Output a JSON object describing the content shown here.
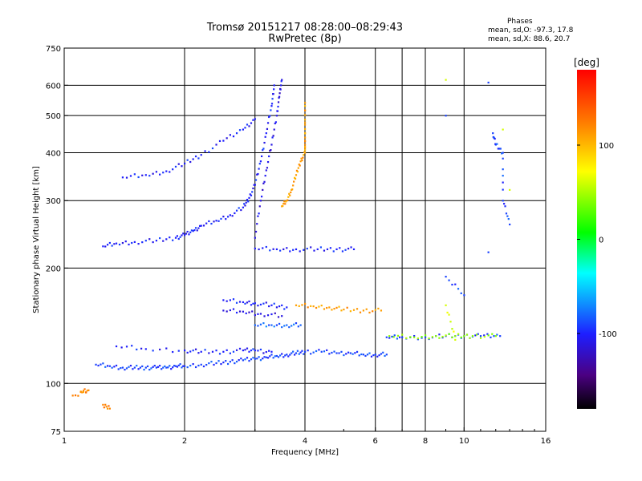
{
  "header": {
    "title_line1": "Tromsø 20151217 08:28:00–08:29:43",
    "title_line2": "RwPretec (8p)",
    "phases_heading": "Phases",
    "phases_o": "mean, sd,O: -97.3, 17.8",
    "phases_x": "mean, sd,X:  88.6, 20.7"
  },
  "chart_data": {
    "type": "scatter",
    "title": "Tromsø 20151217 08:28:00–08:29:43",
    "subtitle": "RwPretec (8p)",
    "xlabel": "Frequency [MHz]",
    "ylabel": "Stationary phase Virtual Height [km]",
    "xscale": "log",
    "yscale": "log",
    "xlim": [
      1,
      16
    ],
    "ylim": [
      75,
      750
    ],
    "xticks": [
      1,
      2,
      4,
      6,
      8,
      10,
      16
    ],
    "xtick_labels": [
      "1",
      "2",
      "4",
      "6",
      "8",
      "10",
      "16"
    ],
    "yticks": [
      75,
      100,
      200,
      300,
      400,
      500,
      600,
      750
    ],
    "ytick_labels": [
      "75",
      "100",
      "200",
      "300",
      "400",
      "500",
      "600",
      "750"
    ],
    "x_gridlines": [
      2,
      3,
      4,
      6,
      7,
      8,
      10
    ],
    "grid": true,
    "colorbar": {
      "label": "[deg]",
      "range": [
        -180,
        180
      ],
      "ticks": [
        100,
        0,
        -100
      ],
      "tick_labels": [
        "100",
        "0",
        "-100"
      ]
    },
    "series": [
      {
        "points": [
          [
            1.2,
            112
          ],
          [
            1.3,
            111
          ],
          [
            1.4,
            110
          ],
          [
            1.5,
            110
          ],
          [
            1.6,
            110
          ],
          [
            1.7,
            110
          ],
          [
            1.8,
            110
          ],
          [
            1.9,
            111
          ],
          [
            2.0,
            111
          ],
          [
            2.2,
            112
          ],
          [
            2.4,
            113
          ],
          [
            2.6,
            114
          ],
          [
            2.8,
            115
          ],
          [
            3.0,
            116
          ],
          [
            3.2,
            117
          ],
          [
            3.4,
            118
          ],
          [
            3.6,
            119
          ],
          [
            3.8,
            120
          ],
          [
            4.0,
            121
          ],
          [
            4.4,
            121
          ],
          [
            4.8,
            120
          ],
          [
            5.2,
            120
          ],
          [
            5.6,
            119
          ],
          [
            6.0,
            119
          ],
          [
            6.4,
            119
          ]
        ],
        "phase": -90
      },
      {
        "points": [
          [
            1.35,
            125
          ],
          [
            1.6,
            123
          ],
          [
            2.0,
            122
          ],
          [
            2.2,
            121
          ],
          [
            2.5,
            121
          ],
          [
            2.8,
            122
          ],
          [
            3.0,
            122
          ],
          [
            3.3,
            121
          ]
        ],
        "phase": -100
      },
      {
        "points": [
          [
            1.25,
            228
          ],
          [
            1.35,
            232
          ],
          [
            1.5,
            234
          ],
          [
            1.7,
            236
          ],
          [
            1.9,
            240
          ],
          [
            2.0,
            244
          ],
          [
            2.1,
            250
          ],
          [
            2.2,
            258
          ],
          [
            2.4,
            266
          ],
          [
            2.6,
            275
          ],
          [
            2.8,
            288
          ],
          [
            2.9,
            305
          ],
          [
            3.0,
            330
          ],
          [
            3.1,
            380
          ],
          [
            3.2,
            450
          ],
          [
            3.3,
            530
          ],
          [
            3.35,
            600
          ]
        ],
        "phase": -100
      },
      {
        "points": [
          [
            3.0,
            240
          ],
          [
            3.1,
            300
          ],
          [
            3.2,
            360
          ],
          [
            3.3,
            420
          ],
          [
            3.4,
            500
          ],
          [
            3.45,
            560
          ],
          [
            3.5,
            620
          ]
        ],
        "phase": -110
      },
      {
        "points": [
          [
            1.4,
            345
          ],
          [
            1.6,
            350
          ],
          [
            1.8,
            358
          ],
          [
            2.0,
            375
          ],
          [
            2.2,
            395
          ],
          [
            2.5,
            430
          ],
          [
            2.8,
            460
          ],
          [
            3.0,
            490
          ]
        ],
        "phase": -100
      },
      {
        "points": [
          [
            3.5,
            290
          ],
          [
            3.6,
            300
          ],
          [
            3.7,
            320
          ],
          [
            3.8,
            350
          ],
          [
            3.9,
            380
          ],
          [
            4.0,
            400
          ],
          [
            4.0,
            430
          ],
          [
            4.0,
            480
          ],
          [
            4.0,
            540
          ]
        ],
        "phase": 110
      },
      {
        "points": [
          [
            2.5,
            165
          ],
          [
            2.8,
            163
          ],
          [
            3.0,
            162
          ],
          [
            3.3,
            160
          ],
          [
            3.6,
            158
          ]
        ],
        "phase": -100
      },
      {
        "points": [
          [
            2.5,
            155
          ],
          [
            2.8,
            154
          ],
          [
            3.1,
            152
          ],
          [
            3.5,
            150
          ]
        ],
        "phase": -110
      },
      {
        "points": [
          [
            3.0,
            142
          ],
          [
            3.3,
            142
          ],
          [
            3.6,
            142
          ],
          [
            3.9,
            142
          ]
        ],
        "phase": -80
      },
      {
        "points": [
          [
            3.8,
            160
          ],
          [
            4.2,
            159
          ],
          [
            4.6,
            158
          ],
          [
            5.0,
            156
          ],
          [
            5.6,
            155
          ],
          [
            6.2,
            155
          ]
        ],
        "phase": 110
      },
      {
        "points": [
          [
            3.0,
            225
          ],
          [
            3.4,
            224
          ],
          [
            3.8,
            224
          ],
          [
            4.3,
            224
          ],
          [
            4.8,
            224
          ],
          [
            5.3,
            224
          ]
        ],
        "phase": -100
      },
      {
        "points": [
          [
            6.4,
            132
          ],
          [
            7.0,
            132
          ],
          [
            8.0,
            132
          ],
          [
            9.0,
            133
          ],
          [
            10.0,
            133
          ],
          [
            11.0,
            133
          ],
          [
            12.3,
            133
          ]
        ],
        "phase": -90
      },
      {
        "points": [
          [
            6.5,
            133
          ],
          [
            7.5,
            132
          ],
          [
            8.5,
            133
          ],
          [
            9.5,
            133
          ],
          [
            10.5,
            133
          ],
          [
            12.0,
            133
          ]
        ],
        "phase": 40
      },
      {
        "points": [
          [
            9.0,
            500
          ],
          [
            11.5,
            610
          ],
          [
            11.8,
            450
          ],
          [
            12.0,
            420
          ],
          [
            12.5,
            400
          ],
          [
            12.5,
            300
          ],
          [
            13.0,
            260
          ],
          [
            11.5,
            220
          ],
          [
            10.0,
            170
          ],
          [
            9.0,
            190
          ]
        ],
        "phase": -90
      },
      {
        "points": [
          [
            9.0,
            620
          ],
          [
            12.5,
            460
          ],
          [
            13.0,
            320
          ],
          [
            9.5,
            130
          ],
          [
            9.0,
            160
          ]
        ],
        "phase": 60
      },
      {
        "points": [
          [
            1.1,
            95
          ],
          [
            1.15,
            96
          ],
          [
            1.05,
            93
          ],
          [
            1.3,
            86
          ],
          [
            1.25,
            88
          ]
        ],
        "phase": 120
      }
    ]
  }
}
